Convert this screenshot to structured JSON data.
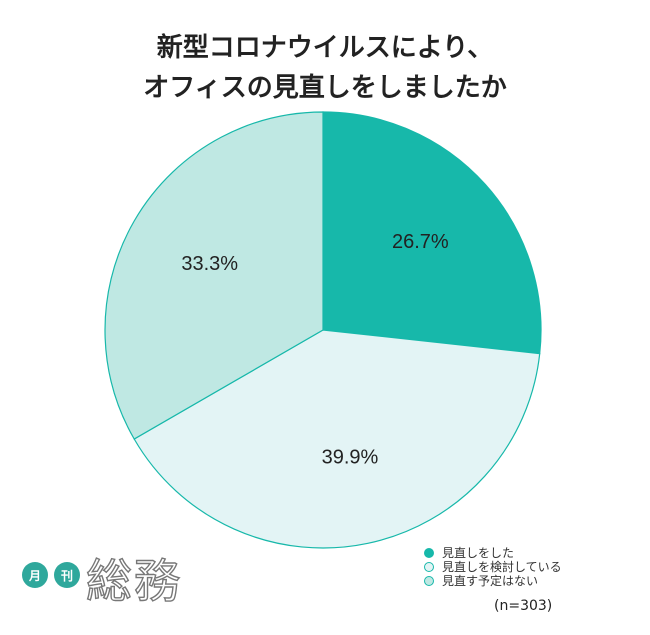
{
  "title": {
    "line1": "新型コロナウイルスにより、",
    "line2": "オフィスの見直しをしましたか"
  },
  "chart_data": {
    "type": "pie",
    "title": "新型コロナウイルスにより、オフィスの見直しをしましたか",
    "slices": [
      {
        "label": "見直しをした",
        "value": 26.7,
        "display": "26.7%",
        "color": "#17b8aa"
      },
      {
        "label": "見直しを検討している",
        "value": 39.9,
        "display": "39.9%",
        "color": "#e3f4f5"
      },
      {
        "label": "見直す予定はない",
        "value": 33.3,
        "display": "33.3%",
        "color": "#bfe8e3"
      }
    ],
    "stroke_color": "#17b8aa",
    "legend_position": "bottom-right",
    "sample_size": "(n=303)"
  },
  "logo": {
    "badge1": "月",
    "badge2": "刊",
    "brand": "総務"
  }
}
